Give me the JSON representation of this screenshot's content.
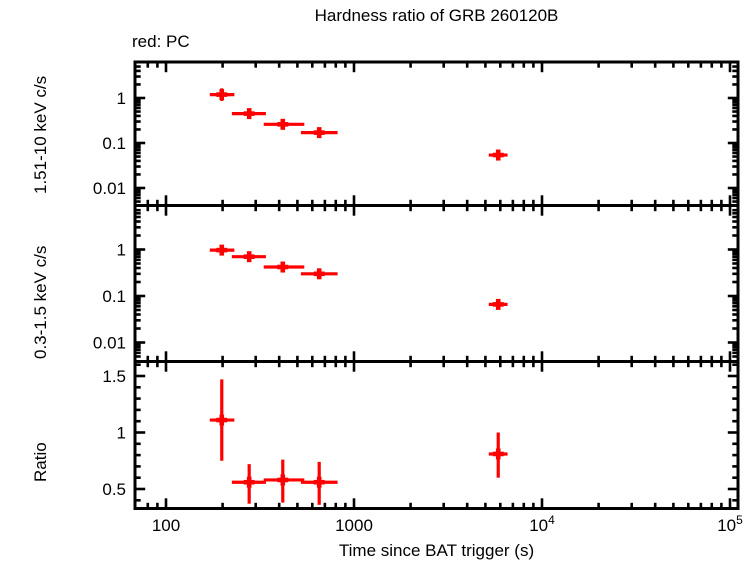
{
  "chart_data": {
    "type": "scatter",
    "title": "Hardness ratio of GRB 260120B",
    "legend_text": "red: PC",
    "series_color": "#ff0000",
    "frame_color": "#000000",
    "x_axis": {
      "label": "Time since BAT trigger (s)",
      "scale": "log",
      "range": [
        68,
        110000
      ],
      "tick_values": [
        100,
        1000,
        10000,
        100000
      ],
      "tick_labels": [
        "100",
        "1000",
        "10^4",
        "10^5"
      ]
    },
    "panels": [
      {
        "ylabel": "1.51-10 keV c/s",
        "scale": "log",
        "range": [
          0.004,
          6.3
        ],
        "tick_values": [
          1,
          0.1,
          0.01
        ],
        "tick_labels": [
          "1",
          "0.1",
          "0.01"
        ]
      },
      {
        "ylabel": "0.3-1.5 keV c/s",
        "scale": "log",
        "range": [
          0.004,
          8.8
        ],
        "tick_values": [
          1,
          0.1,
          0.01
        ],
        "tick_labels": [
          "1",
          "0.1",
          "0.01"
        ]
      },
      {
        "ylabel": "Ratio",
        "scale": "linear",
        "range": [
          0.33,
          1.63
        ],
        "tick_values": [
          1.5,
          1,
          0.5
        ],
        "tick_labels": [
          "1.5",
          "1",
          "0.5"
        ]
      }
    ],
    "points": {
      "time_s": [
        198,
        277,
        418,
        653,
        5850
      ],
      "time_err_lo": [
        27,
        53,
        87,
        131,
        640
      ],
      "time_err_hi": [
        33,
        63,
        126,
        165,
        710
      ],
      "hard_rate": [
        1.19,
        0.45,
        0.26,
        0.17,
        0.054
      ],
      "hard_err_lo": [
        0.33,
        0.1,
        0.05,
        0.035,
        0.011
      ],
      "hard_err_hi": [
        0.45,
        0.12,
        0.06,
        0.04,
        0.012
      ],
      "soft_rate": [
        0.97,
        0.7,
        0.42,
        0.3,
        0.066
      ],
      "soft_err_lo": [
        0.2,
        0.13,
        0.08,
        0.05,
        0.013
      ],
      "soft_err_hi": [
        0.25,
        0.15,
        0.09,
        0.06,
        0.015
      ],
      "ratio": [
        1.11,
        0.56,
        0.58,
        0.56,
        0.81
      ],
      "ratio_err_lo": [
        0.36,
        0.19,
        0.2,
        0.2,
        0.21
      ],
      "ratio_err_hi": [
        0.36,
        0.16,
        0.18,
        0.18,
        0.19
      ]
    }
  }
}
